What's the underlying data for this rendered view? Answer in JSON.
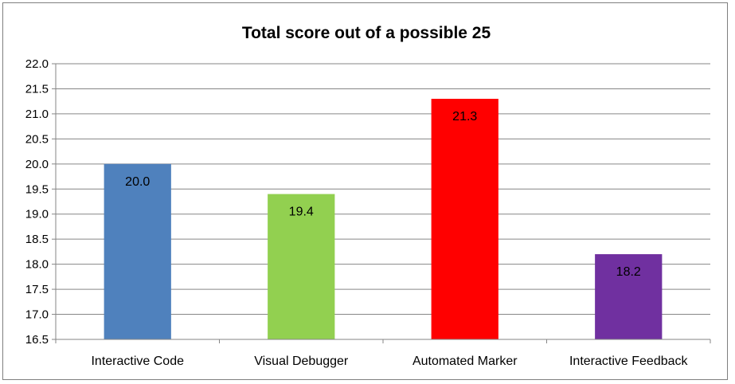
{
  "chart_data": {
    "type": "bar",
    "title": "Total score out of a possible 25",
    "xlabel": "",
    "ylabel": "",
    "categories": [
      "Interactive Code",
      "Visual Debugger",
      "Automated Marker",
      "Interactive Feedback"
    ],
    "values": [
      20.0,
      19.4,
      21.3,
      18.2
    ],
    "data_labels": [
      "20.0",
      "19.4",
      "21.3",
      "18.2"
    ],
    "colors": [
      "#4f81bd",
      "#92d050",
      "#ff0000",
      "#7030a0"
    ],
    "ylim": [
      16.5,
      22.0
    ],
    "yticks": [
      "16.5",
      "17.0",
      "17.5",
      "18.0",
      "18.5",
      "19.0",
      "19.5",
      "20.0",
      "20.5",
      "21.0",
      "21.5",
      "22.0"
    ],
    "grid": true,
    "legend": "none"
  }
}
